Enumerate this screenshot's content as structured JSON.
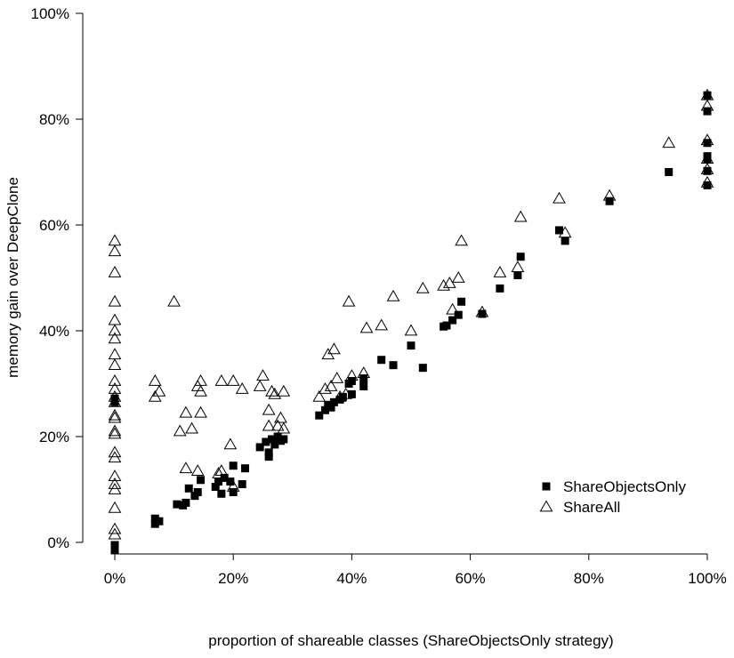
{
  "chart_data": {
    "type": "scatter",
    "xlabel": "proportion of shareable classes (ShareObjectsOnly strategy)",
    "ylabel": "memory gain over DeepClone",
    "xlim": [
      0,
      100
    ],
    "ylim": [
      0,
      100
    ],
    "x_ticks": [
      "0%",
      "20%",
      "40%",
      "60%",
      "80%",
      "100%"
    ],
    "y_ticks": [
      "0%",
      "20%",
      "40%",
      "60%",
      "80%",
      "100%"
    ],
    "legend_position": "bottom-right",
    "grid": false,
    "series": [
      {
        "name": "ShareObjectsOnly",
        "marker": "filled-square",
        "color": "#000000",
        "points": [
          [
            0,
            -1.5
          ],
          [
            0,
            -0.5
          ],
          [
            0,
            26.5
          ],
          [
            0,
            27.2
          ],
          [
            6.8,
            3.5
          ],
          [
            6.8,
            4.5
          ],
          [
            7.5,
            4.0
          ],
          [
            10.5,
            7.2
          ],
          [
            11.5,
            7.0
          ],
          [
            12.0,
            7.5
          ],
          [
            12.5,
            10.2
          ],
          [
            13.5,
            8.8
          ],
          [
            14.0,
            9.5
          ],
          [
            14.5,
            11.8
          ],
          [
            17.0,
            10.5
          ],
          [
            17.5,
            11.5
          ],
          [
            18.0,
            9.2
          ],
          [
            18.5,
            12.2
          ],
          [
            19.5,
            11.5
          ],
          [
            20.0,
            14.5
          ],
          [
            20.0,
            9.5
          ],
          [
            21.5,
            11.0
          ],
          [
            22.0,
            14.0
          ],
          [
            24.5,
            18.0
          ],
          [
            25.5,
            19.0
          ],
          [
            26.0,
            17.0
          ],
          [
            26.0,
            16.2
          ],
          [
            26.5,
            19.5
          ],
          [
            27.0,
            18.5
          ],
          [
            27.5,
            20.0
          ],
          [
            28.0,
            19.2
          ],
          [
            28.5,
            19.5
          ],
          [
            34.5,
            24.0
          ],
          [
            35.5,
            25.0
          ],
          [
            36.0,
            26.0
          ],
          [
            36.5,
            25.5
          ],
          [
            37.0,
            26.5
          ],
          [
            38.0,
            27.0
          ],
          [
            38.5,
            27.5
          ],
          [
            39.5,
            30.0
          ],
          [
            40.0,
            28.0
          ],
          [
            40.0,
            30.5
          ],
          [
            42.0,
            31.0
          ],
          [
            42.0,
            29.5
          ],
          [
            45.0,
            34.5
          ],
          [
            47.0,
            33.5
          ],
          [
            50.0,
            37.2
          ],
          [
            52.0,
            33.0
          ],
          [
            55.5,
            40.8
          ],
          [
            56.0,
            41.0
          ],
          [
            57.0,
            42.0
          ],
          [
            58.0,
            43.0
          ],
          [
            58.5,
            45.5
          ],
          [
            62.0,
            43.2
          ],
          [
            65.0,
            48.0
          ],
          [
            68.0,
            50.5
          ],
          [
            68.5,
            54.0
          ],
          [
            75.0,
            59.0
          ],
          [
            76.0,
            57.0
          ],
          [
            83.5,
            64.5
          ],
          [
            93.5,
            70.0
          ],
          [
            100,
            67.5
          ],
          [
            100,
            70.2
          ],
          [
            100,
            72.5
          ],
          [
            100,
            73.0
          ],
          [
            100,
            75.5
          ],
          [
            100,
            81.5
          ],
          [
            100,
            84.5
          ]
        ]
      },
      {
        "name": "ShareAll",
        "marker": "open-triangle",
        "color": "#000000",
        "points": [
          [
            0,
            1.5
          ],
          [
            0,
            2.5
          ],
          [
            0,
            6.5
          ],
          [
            0,
            10.0
          ],
          [
            0,
            11.0
          ],
          [
            0,
            12.5
          ],
          [
            0,
            16.0
          ],
          [
            0,
            17.0
          ],
          [
            0,
            20.5
          ],
          [
            0,
            21.0
          ],
          [
            0,
            23.5
          ],
          [
            0,
            24.0
          ],
          [
            0,
            26.5
          ],
          [
            0,
            27.5
          ],
          [
            0,
            29.0
          ],
          [
            0,
            30.5
          ],
          [
            0,
            33.5
          ],
          [
            0,
            35.5
          ],
          [
            0,
            38.5
          ],
          [
            0,
            40.0
          ],
          [
            0,
            42.0
          ],
          [
            0,
            45.5
          ],
          [
            0,
            51.0
          ],
          [
            0,
            55.0
          ],
          [
            0,
            57.0
          ],
          [
            6.8,
            27.5
          ],
          [
            6.8,
            30.5
          ],
          [
            7.5,
            28.5
          ],
          [
            10.0,
            45.5
          ],
          [
            11.0,
            21.0
          ],
          [
            12.0,
            24.5
          ],
          [
            12.0,
            14.0
          ],
          [
            13.0,
            21.5
          ],
          [
            14.0,
            13.5
          ],
          [
            14.0,
            29.5
          ],
          [
            14.5,
            24.5
          ],
          [
            14.5,
            30.5
          ],
          [
            14.5,
            28.5
          ],
          [
            17.5,
            13.0
          ],
          [
            18.0,
            13.5
          ],
          [
            18.0,
            30.5
          ],
          [
            19.5,
            18.5
          ],
          [
            20.0,
            30.5
          ],
          [
            20.0,
            10.5
          ],
          [
            21.5,
            29.0
          ],
          [
            24.5,
            29.5
          ],
          [
            25.0,
            31.5
          ],
          [
            26.0,
            25.0
          ],
          [
            26.0,
            22.0
          ],
          [
            26.5,
            28.5
          ],
          [
            27.0,
            28.0
          ],
          [
            27.5,
            22.0
          ],
          [
            28.0,
            23.5
          ],
          [
            28.5,
            28.5
          ],
          [
            28.5,
            21.5
          ],
          [
            34.5,
            27.5
          ],
          [
            35.5,
            29.0
          ],
          [
            36.0,
            35.5
          ],
          [
            36.5,
            29.5
          ],
          [
            37.0,
            36.5
          ],
          [
            37.5,
            31.0
          ],
          [
            38.0,
            27.5
          ],
          [
            39.0,
            28.0
          ],
          [
            39.5,
            45.5
          ],
          [
            40.0,
            31.5
          ],
          [
            42.0,
            32.0
          ],
          [
            42.5,
            40.5
          ],
          [
            45.0,
            41.0
          ],
          [
            47.0,
            46.5
          ],
          [
            50.0,
            40.0
          ],
          [
            52.0,
            48.0
          ],
          [
            55.5,
            48.5
          ],
          [
            56.5,
            49.0
          ],
          [
            57.0,
            44.0
          ],
          [
            58.0,
            50.0
          ],
          [
            58.5,
            57.0
          ],
          [
            62.0,
            43.5
          ],
          [
            65.0,
            51.0
          ],
          [
            68.0,
            52.0
          ],
          [
            68.5,
            61.5
          ],
          [
            75.0,
            65.0
          ],
          [
            76.0,
            58.5
          ],
          [
            83.5,
            65.5
          ],
          [
            93.5,
            75.5
          ],
          [
            100,
            68.0
          ],
          [
            100,
            70.5
          ],
          [
            100,
            72.5
          ],
          [
            100,
            76.0
          ],
          [
            100,
            82.5
          ],
          [
            100,
            84.5
          ]
        ]
      }
    ]
  }
}
